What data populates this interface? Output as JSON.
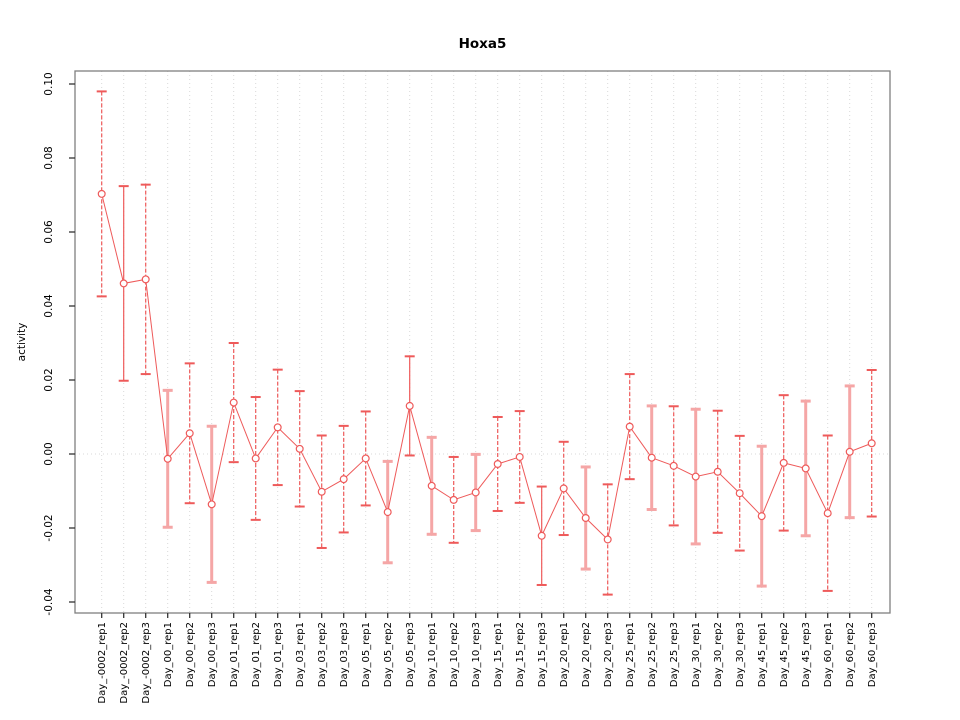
{
  "window": {
    "background": "#ffffff"
  },
  "chart_data": {
    "type": "line",
    "title": "Hoxa5",
    "xlabel": "",
    "ylabel": "activity",
    "legend": "none",
    "grid": "vertical dotted gridline per category; horizontal dotted line at y=0 only",
    "ylim": [
      -0.043,
      0.104
    ],
    "yticks": [
      0.1,
      0.08,
      0.06,
      0.04,
      0.02,
      0.0,
      -0.02,
      -0.04
    ],
    "ytick_labels": [
      "0.10",
      "0.08",
      "0.06",
      "0.04",
      "0.02",
      "0.00",
      "-0.02",
      "-0.04"
    ],
    "categories": [
      "Day_-0002_rep1",
      "Day_-0002_rep2",
      "Day_-0002_rep3",
      "Day_00_rep1",
      "Day_00_rep2",
      "Day_00_rep3",
      "Day_01_rep1",
      "Day_01_rep2",
      "Day_01_rep3",
      "Day_03_rep1",
      "Day_03_rep2",
      "Day_03_rep3",
      "Day_05_rep1",
      "Day_05_rep2",
      "Day_05_rep3",
      "Day_10_rep1",
      "Day_10_rep2",
      "Day_10_rep3",
      "Day_15_rep1",
      "Day_15_rep2",
      "Day_15_rep3",
      "Day_20_rep1",
      "Day_20_rep2",
      "Day_20_rep3",
      "Day_25_rep1",
      "Day_25_rep2",
      "Day_25_rep3",
      "Day_30_rep1",
      "Day_30_rep2",
      "Day_30_rep3",
      "Day_45_rep1",
      "Day_45_rep2",
      "Day_45_rep3",
      "Day_60_rep1",
      "Day_60_rep2",
      "Day_60_rep3"
    ],
    "series": [
      {
        "name": "activity",
        "marker": "open-circle",
        "values": [
          0.0703,
          0.0461,
          0.0472,
          -0.0013,
          0.0056,
          -0.0136,
          0.0139,
          -0.0012,
          0.0072,
          0.0014,
          -0.0102,
          -0.0068,
          -0.0012,
          -0.0157,
          0.013,
          -0.0086,
          -0.0124,
          -0.0104,
          -0.0027,
          -0.0008,
          -0.0221,
          -0.0093,
          -0.0173,
          -0.0231,
          0.0074,
          -0.001,
          -0.0032,
          -0.0061,
          -0.0048,
          -0.0106,
          -0.0168,
          -0.0024,
          -0.0039,
          -0.016,
          0.0006,
          0.0029
        ],
        "errors": [
          0.0277,
          0.0263,
          0.0256,
          0.0185,
          0.0189,
          0.0211,
          0.0161,
          0.0166,
          0.0156,
          0.0156,
          0.0152,
          0.0144,
          0.0127,
          0.0137,
          0.0134,
          0.0131,
          0.0116,
          0.0103,
          0.0127,
          0.0124,
          0.0133,
          0.0126,
          0.0138,
          0.0149,
          0.0142,
          0.014,
          0.0161,
          0.0182,
          0.0165,
          0.0155,
          0.0189,
          0.0183,
          0.0182,
          0.021,
          0.0178,
          0.0198
        ],
        "error_bar_styles": [
          "dashed",
          "solid",
          "dashed",
          "thick",
          "dashed",
          "thick",
          "dashed",
          "dashed",
          "dashed",
          "dashed",
          "dashed",
          "dashed",
          "dashed",
          "thick",
          "solid",
          "thick",
          "dashed",
          "thick",
          "dashed",
          "dashed",
          "solid",
          "dashed",
          "thick",
          "dashed",
          "dashed",
          "thick",
          "dashed",
          "thick",
          "dashed",
          "dashed",
          "thick",
          "dashed",
          "thick",
          "dashed",
          "thick",
          "dashed"
        ]
      }
    ],
    "colors": {
      "point": "#ee5a5a",
      "line": "#ee5a5a",
      "error_thin": "#ee5a5a",
      "error_thick": "#f5a6a6",
      "gridline": "#d9d9d9",
      "zero_line": "#d9d9d9",
      "frame": "#7f7f7f",
      "tick": "#333333",
      "text": "#000000"
    }
  }
}
